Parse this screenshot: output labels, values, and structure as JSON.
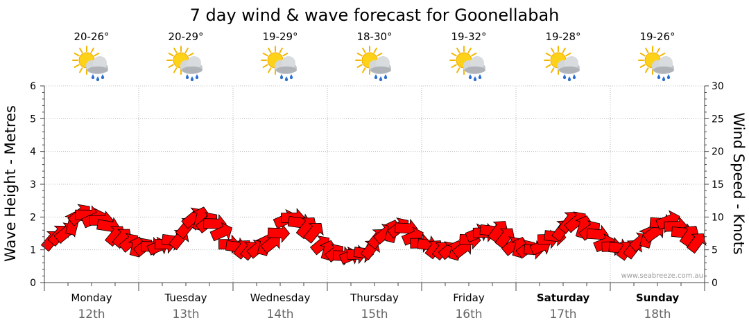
{
  "chart_data": {
    "type": "line",
    "title": "7 day wind & wave forecast for Goonellabah",
    "ylabel_left": "Wave Height - Metres",
    "ylabel_right": "Wind Speed - Knots",
    "ylim_left": [
      0,
      6
    ],
    "ylim_right": [
      0,
      30
    ],
    "yticks_left": [
      "0",
      "1",
      "2",
      "3",
      "4",
      "5",
      "6"
    ],
    "yticks_right": [
      "0",
      "5",
      "10",
      "15",
      "20",
      "25",
      "30"
    ],
    "watermark": "www.seabreeze.com.au",
    "days": [
      {
        "name": "Monday",
        "date": "12th",
        "temp": "20-26°",
        "bold": false
      },
      {
        "name": "Tuesday",
        "date": "13th",
        "temp": "20-29°",
        "bold": false
      },
      {
        "name": "Wednesday",
        "date": "14th",
        "temp": "19-29°",
        "bold": false
      },
      {
        "name": "Thursday",
        "date": "15th",
        "temp": "18-30°",
        "bold": false
      },
      {
        "name": "Friday",
        "date": "16th",
        "temp": "19-32°",
        "bold": false
      },
      {
        "name": "Saturday",
        "date": "17th",
        "temp": "19-28°",
        "bold": true
      },
      {
        "name": "Sunday",
        "date": "18th",
        "temp": "19-26°",
        "bold": true
      }
    ],
    "weather_icon": "partly-cloudy-showers-icon",
    "wave_color": "#ff0000",
    "series": [
      {
        "name": "Wave Height",
        "x_day": [
          0.0,
          0.2,
          0.4,
          0.6,
          0.8,
          1.0,
          1.2,
          1.4,
          1.6,
          1.8,
          2.0,
          2.2,
          2.4,
          2.6,
          2.8,
          3.0,
          3.2,
          3.4,
          3.6,
          3.8,
          4.0,
          4.2,
          4.4,
          4.6,
          4.8,
          5.0,
          5.2,
          5.4,
          5.6,
          5.8,
          6.0,
          6.2,
          6.4,
          6.6,
          6.8,
          7.0
        ],
        "values": [
          1.2,
          1.5,
          2.1,
          1.9,
          1.4,
          1.1,
          1.1,
          1.3,
          2.0,
          1.8,
          1.1,
          1.0,
          1.2,
          2.0,
          1.7,
          1.0,
          0.8,
          0.9,
          1.5,
          1.7,
          1.2,
          1.0,
          1.0,
          1.5,
          1.6,
          1.1,
          1.0,
          1.4,
          1.9,
          1.6,
          1.1,
          1.0,
          1.4,
          1.9,
          1.5,
          1.1
        ]
      },
      {
        "name": "Wind Speed",
        "x_day": [
          0.0,
          0.2,
          0.4,
          0.6,
          0.8,
          1.0,
          1.2,
          1.4,
          1.6,
          1.8,
          2.0,
          2.2,
          2.4,
          2.6,
          2.8,
          3.0,
          3.2,
          3.4,
          3.6,
          3.8,
          4.0,
          4.2,
          4.4,
          4.6,
          4.8,
          5.0,
          5.2,
          5.4,
          5.6,
          5.8,
          6.0,
          6.2,
          6.4,
          6.6,
          6.8,
          7.0
        ],
        "values": [
          7,
          9,
          11,
          10,
          7,
          5,
          6,
          7,
          10,
          9,
          6,
          5,
          6,
          10,
          9,
          5,
          4,
          5,
          8,
          9,
          6,
          4,
          5,
          8,
          9,
          6,
          5,
          7,
          10,
          8,
          6,
          5,
          7,
          10,
          8,
          6
        ]
      }
    ]
  }
}
